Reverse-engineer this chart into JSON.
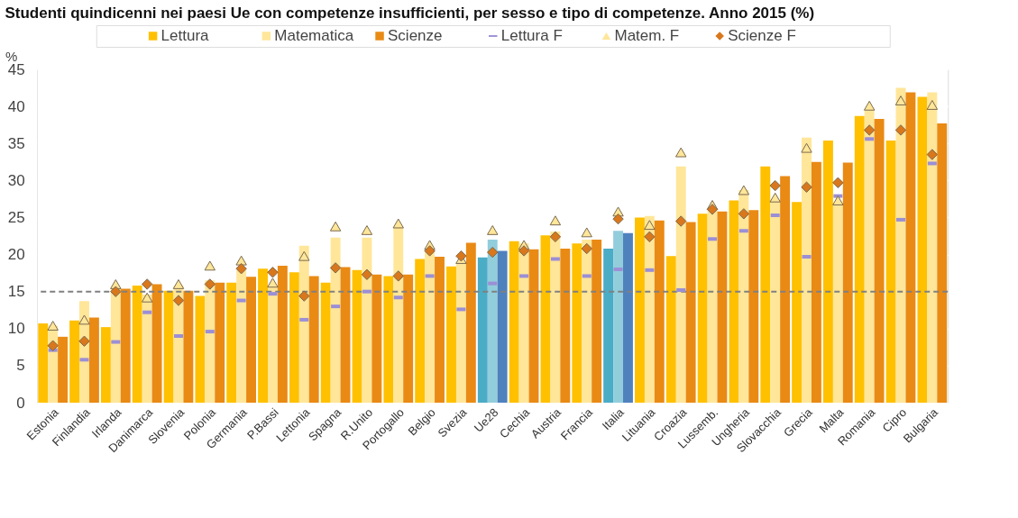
{
  "chart_data": {
    "type": "bar",
    "title": "Studenti quindicenni nei paesi Ue con competenze insufficienti, per sesso e tipo di competenze. Anno 2015 (%)",
    "ylabel": "%",
    "categories": [
      "Estonia",
      "Finlandia",
      "Irlanda",
      "Danimarca",
      "Slovenia",
      "Polonia",
      "Germania",
      "P.Bassi",
      "Lettonia",
      "Spagna",
      "R.Unito",
      "Portogallo",
      "Belgio",
      "Svezia",
      "Ue28",
      "Cechia",
      "Austria",
      "Francia",
      "Italia",
      "Lituania",
      "Croazia",
      "Lussemb.",
      "Ungheria",
      "Slovacchia",
      "Grecia",
      "Malta",
      "Romania",
      "Cipro",
      "Bulgaria"
    ],
    "ylim": [
      0,
      45
    ],
    "yticks": [
      0,
      5,
      10,
      15,
      20,
      25,
      30,
      35,
      40,
      45
    ],
    "grid": true,
    "legend": "top",
    "ref_lines": [
      {
        "axis": "y",
        "value": 15,
        "label": null,
        "color": "#808080",
        "line_style": "dashed"
      }
    ],
    "series": [
      {
        "name": "Lettura",
        "type": "bar",
        "color": "#ffc000",
        "colors": [
          "#ffc000",
          "#ffc000",
          "#ffc000",
          "#ffc000",
          "#ffc000",
          "#ffc000",
          "#ffc000",
          "#ffc000",
          "#ffc000",
          "#ffc000",
          "#ffc000",
          "#ffc000",
          "#ffc000",
          "#ffc000",
          "#4bacc6",
          "#ffc000",
          "#ffc000",
          "#ffc000",
          "#4bacc6",
          "#ffc000",
          "#ffc000",
          "#ffc000",
          "#ffc000",
          "#ffc000",
          "#ffc000",
          "#ffc000",
          "#ffc000",
          "#ffc000",
          "#ffc000"
        ],
        "values": [
          10.7,
          11.1,
          10.2,
          15.8,
          15.1,
          14.4,
          16.2,
          18.1,
          17.6,
          16.2,
          17.9,
          17.1,
          19.4,
          18.4,
          19.6,
          21.8,
          22.6,
          21.5,
          20.8,
          25.0,
          19.8,
          25.5,
          27.3,
          31.9,
          27.1,
          35.4,
          38.7,
          35.4,
          41.3
        ]
      },
      {
        "name": "Matematica",
        "type": "bar",
        "color": "#ffe699",
        "colors": [
          "#ffe699",
          "#ffe699",
          "#ffe699",
          "#ffe699",
          "#ffe699",
          "#ffe699",
          "#ffe699",
          "#ffe699",
          "#ffe699",
          "#ffe699",
          "#ffe699",
          "#ffe699",
          "#ffe699",
          "#ffe699",
          "#92cddc",
          "#ffe699",
          "#ffe699",
          "#ffe699",
          "#92cddc",
          "#ffe699",
          "#ffe699",
          "#ffe699",
          "#ffe699",
          "#ffe699",
          "#ffe699",
          "#ffe699",
          "#ffe699",
          "#ffe699",
          "#ffe699"
        ],
        "values": [
          10.4,
          13.7,
          15.4,
          14.6,
          15.8,
          16.5,
          17.9,
          15.8,
          21.2,
          22.3,
          22.3,
          23.8,
          20.4,
          18.8,
          22.0,
          21.5,
          23.1,
          22.0,
          23.2,
          25.2,
          31.9,
          26.2,
          28.7,
          27.3,
          35.8,
          27.0,
          39.5,
          42.5,
          41.9
        ]
      },
      {
        "name": "Scienze",
        "type": "bar",
        "color": "#e98a15",
        "colors": [
          "#e98a15",
          "#e98a15",
          "#e98a15",
          "#e98a15",
          "#e98a15",
          "#e98a15",
          "#e98a15",
          "#e98a15",
          "#e98a15",
          "#e98a15",
          "#e98a15",
          "#e98a15",
          "#e98a15",
          "#e98a15",
          "#4f81bd",
          "#e98a15",
          "#e98a15",
          "#e98a15",
          "#4f81bd",
          "#e98a15",
          "#e98a15",
          "#e98a15",
          "#e98a15",
          "#e98a15",
          "#e98a15",
          "#e98a15",
          "#e98a15",
          "#e98a15",
          "#e98a15"
        ],
        "values": [
          8.9,
          11.5,
          15.4,
          16.0,
          15.1,
          16.2,
          17.0,
          18.5,
          17.1,
          18.3,
          17.3,
          17.3,
          19.7,
          21.6,
          20.5,
          20.7,
          20.8,
          22.0,
          22.9,
          24.6,
          24.4,
          25.8,
          26.0,
          30.6,
          32.5,
          32.4,
          38.3,
          41.9,
          37.7
        ]
      },
      {
        "name": "Lettura F",
        "type": "scatter",
        "color": "#9b8fd6",
        "values": [
          7.1,
          5.8,
          8.2,
          12.2,
          9.0,
          9.6,
          13.8,
          14.7,
          11.2,
          13.0,
          15.0,
          14.2,
          17.1,
          12.6,
          16.1,
          17.1,
          19.4,
          17.1,
          18.0,
          17.9,
          15.2,
          22.1,
          23.2,
          25.3,
          19.7,
          27.9,
          35.6,
          24.7,
          32.3
        ]
      },
      {
        "name": "Matem. F",
        "type": "scatter",
        "marker": "triangle",
        "color": "#ffe699",
        "values": [
          10.4,
          11.2,
          16.0,
          14.2,
          16.0,
          18.5,
          19.2,
          16.2,
          19.8,
          23.8,
          23.3,
          24.2,
          21.3,
          19.4,
          23.3,
          21.3,
          24.6,
          23.0,
          25.8,
          24.0,
          33.8,
          26.7,
          28.7,
          27.7,
          34.4,
          27.3,
          40.1,
          40.8,
          40.2
        ]
      },
      {
        "name": "Scienze F",
        "type": "scatter",
        "marker": "diamond",
        "color": "#d9771c",
        "values": [
          7.7,
          8.3,
          15.0,
          16.0,
          13.8,
          16.0,
          18.1,
          17.6,
          14.4,
          18.2,
          17.3,
          17.1,
          20.5,
          19.8,
          20.3,
          20.5,
          22.4,
          20.8,
          24.8,
          22.4,
          24.5,
          26.1,
          25.5,
          29.3,
          29.1,
          29.7,
          36.8,
          36.8,
          33.5
        ]
      }
    ]
  }
}
